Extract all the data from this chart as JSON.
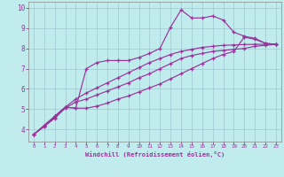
{
  "bg_color": "#c0ecee",
  "grid_color": "#a0c8d0",
  "line_color": "#993399",
  "xlabel": "Windchill (Refroidissement éolien,°C)",
  "tick_color": "#993399",
  "xlim": [
    -0.5,
    23.5
  ],
  "ylim": [
    3.4,
    10.3
  ],
  "xticks": [
    0,
    1,
    2,
    3,
    4,
    5,
    6,
    7,
    8,
    9,
    10,
    11,
    12,
    13,
    14,
    15,
    16,
    17,
    18,
    19,
    20,
    21,
    22,
    23
  ],
  "yticks": [
    4,
    5,
    6,
    7,
    8,
    9,
    10
  ],
  "line1_x": [
    0,
    1,
    2,
    3,
    4,
    5,
    6,
    7,
    8,
    9,
    10,
    11,
    12,
    13,
    14,
    15,
    16,
    17,
    18,
    19,
    20,
    21,
    22,
    23
  ],
  "line1_y": [
    3.75,
    4.15,
    4.55,
    5.05,
    5.35,
    5.5,
    5.7,
    5.9,
    6.1,
    6.3,
    6.55,
    6.75,
    7.0,
    7.25,
    7.5,
    7.65,
    7.75,
    7.85,
    7.9,
    7.95,
    8.0,
    8.1,
    8.15,
    8.2
  ],
  "line2_x": [
    0,
    1,
    2,
    3,
    4,
    5,
    6,
    7,
    8,
    9,
    10,
    11,
    12,
    13,
    14,
    15,
    16,
    17,
    18,
    19,
    20,
    21,
    22,
    23
  ],
  "line2_y": [
    3.75,
    4.2,
    4.65,
    5.1,
    5.5,
    5.8,
    6.05,
    6.3,
    6.55,
    6.8,
    7.05,
    7.3,
    7.5,
    7.7,
    7.85,
    7.95,
    8.05,
    8.1,
    8.15,
    8.17,
    8.19,
    8.2,
    8.2,
    8.2
  ],
  "line3_x": [
    0,
    1,
    2,
    3,
    4,
    5,
    6,
    7,
    8,
    9,
    10,
    11,
    12,
    13,
    14,
    15,
    16,
    17,
    18,
    19,
    20,
    21,
    22,
    23
  ],
  "line3_y": [
    3.75,
    4.2,
    4.65,
    5.1,
    5.05,
    7.0,
    7.3,
    7.4,
    7.4,
    7.4,
    7.55,
    7.75,
    8.0,
    9.05,
    9.9,
    9.5,
    9.5,
    9.6,
    9.4,
    8.8,
    8.6,
    8.5,
    8.25,
    8.2
  ],
  "line4_x": [
    0,
    1,
    2,
    3,
    4,
    5,
    6,
    7,
    8,
    9,
    10,
    11,
    12,
    13,
    14,
    15,
    16,
    17,
    18,
    19,
    20,
    21,
    22,
    23
  ],
  "line4_y": [
    3.75,
    4.15,
    4.6,
    5.1,
    5.05,
    5.05,
    5.15,
    5.3,
    5.5,
    5.65,
    5.85,
    6.05,
    6.25,
    6.5,
    6.75,
    7.0,
    7.25,
    7.5,
    7.7,
    7.85,
    8.55,
    8.45,
    8.25,
    8.2
  ]
}
